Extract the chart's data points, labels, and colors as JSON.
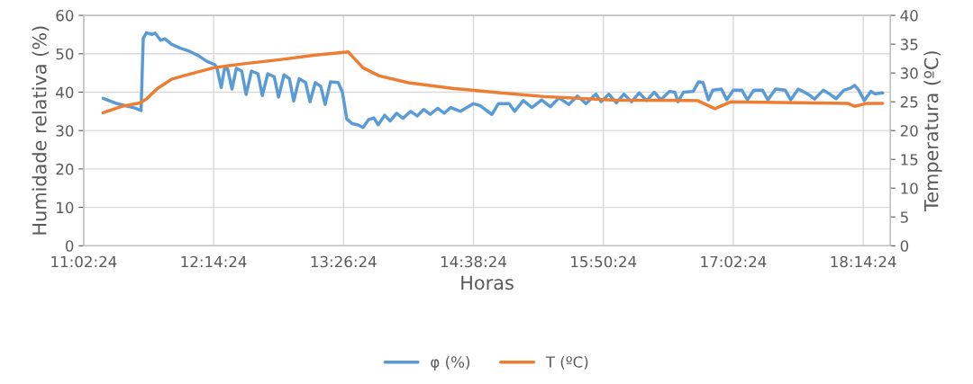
{
  "chart_data": {
    "type": "line",
    "xlabel": "Horas",
    "ylabel": "Humidade relativa (%)",
    "y2label": "Temperatura (ºC)",
    "xlim": [
      11.04,
      18.49
    ],
    "xticks": [
      {
        "value": 11.04,
        "label": "11:02:24"
      },
      {
        "value": 12.24,
        "label": "12:14:24"
      },
      {
        "value": 13.44,
        "label": "13:26:24"
      },
      {
        "value": 14.64,
        "label": "14:38:24"
      },
      {
        "value": 15.84,
        "label": "15:50:24"
      },
      {
        "value": 17.04,
        "label": "17:02:24"
      },
      {
        "value": 18.24,
        "label": "18:14:24"
      }
    ],
    "ylim": [
      0,
      60
    ],
    "yticks": [
      0,
      10,
      20,
      30,
      40,
      50,
      60
    ],
    "y2lim": [
      0,
      40
    ],
    "y2ticks": [
      0,
      5,
      10,
      15,
      20,
      25,
      30,
      35,
      40
    ],
    "grid": true,
    "legend": "bottom",
    "marker": "none",
    "line_style": "solid",
    "series": [
      {
        "name": "φ (%)",
        "color": "#5b9bd5",
        "x": [
          11.22,
          11.35,
          11.52,
          11.57,
          11.59,
          11.62,
          11.67,
          11.7,
          11.75,
          11.79,
          11.85,
          11.93,
          12.02,
          12.1,
          12.18,
          12.25,
          12.27,
          12.31,
          12.34,
          12.37,
          12.41,
          12.45,
          12.5,
          12.54,
          12.59,
          12.65,
          12.69,
          12.74,
          12.8,
          12.84,
          12.89,
          12.94,
          12.98,
          13.03,
          13.09,
          13.13,
          13.18,
          13.23,
          13.27,
          13.32,
          13.39,
          13.43,
          13.47,
          13.52,
          13.57,
          13.62,
          13.67,
          13.72,
          13.76,
          13.82,
          13.87,
          13.93,
          13.99,
          14.06,
          14.12,
          14.18,
          14.24,
          14.31,
          14.37,
          14.43,
          14.52,
          14.64,
          14.7,
          14.81,
          14.87,
          14.97,
          15.02,
          15.1,
          15.18,
          15.27,
          15.35,
          15.43,
          15.52,
          15.6,
          15.68,
          15.77,
          15.82,
          15.89,
          15.96,
          16.03,
          16.1,
          16.17,
          16.24,
          16.31,
          16.37,
          16.45,
          16.5,
          16.53,
          16.58,
          16.67,
          16.72,
          16.76,
          16.81,
          16.85,
          16.93,
          16.98,
          17.04,
          17.12,
          17.17,
          17.23,
          17.31,
          17.36,
          17.43,
          17.52,
          17.57,
          17.64,
          17.73,
          17.79,
          17.87,
          17.93,
          17.99,
          18.06,
          18.12,
          18.16,
          18.2,
          18.25,
          18.31,
          18.35,
          18.42
        ],
        "values": [
          38.4,
          37.0,
          35.8,
          35.2,
          54.0,
          55.5,
          55.0,
          55.4,
          53.5,
          53.9,
          52.5,
          51.5,
          50.6,
          49.5,
          48.0,
          47.2,
          46.5,
          41.2,
          46.0,
          46.0,
          40.8,
          46.2,
          45.5,
          39.4,
          45.5,
          44.8,
          39.1,
          44.8,
          44.0,
          38.7,
          44.5,
          43.5,
          37.7,
          43.5,
          42.5,
          37.5,
          42.5,
          41.5,
          36.8,
          42.7,
          42.5,
          40.0,
          33.0,
          31.8,
          31.5,
          30.8,
          32.8,
          33.3,
          31.5,
          34.0,
          32.5,
          34.5,
          33.2,
          35.0,
          33.8,
          35.5,
          34.2,
          35.8,
          34.5,
          36.0,
          35.0,
          37.0,
          36.5,
          34.2,
          37.0,
          37.0,
          35.0,
          37.8,
          36.0,
          38.0,
          36.2,
          38.5,
          36.8,
          39.0,
          37.0,
          39.5,
          37.5,
          39.5,
          37.2,
          39.5,
          37.5,
          39.8,
          37.8,
          40.0,
          38.0,
          40.2,
          40.0,
          37.5,
          40.0,
          40.2,
          42.7,
          42.5,
          38.0,
          40.5,
          40.8,
          38.0,
          40.5,
          40.5,
          38.0,
          40.5,
          40.5,
          38.0,
          40.8,
          40.5,
          38.0,
          40.8,
          39.5,
          38.2,
          40.5,
          39.5,
          38.3,
          40.5,
          41.0,
          41.8,
          40.5,
          37.8,
          40.2,
          39.6,
          39.8
        ]
      },
      {
        "name": "T (ºC)",
        "color": "#ed7d31",
        "axis": "y2",
        "x": [
          11.22,
          11.39,
          11.56,
          11.62,
          11.72,
          11.85,
          12.02,
          12.24,
          12.52,
          12.85,
          13.18,
          13.46,
          13.48,
          13.62,
          13.77,
          14.04,
          14.46,
          14.87,
          15.29,
          15.93,
          16.71,
          16.87,
          17.02,
          18.1,
          18.16,
          18.27,
          18.42
        ],
        "values": [
          23.1,
          24.2,
          24.8,
          25.5,
          27.3,
          28.9,
          29.8,
          30.9,
          31.6,
          32.3,
          33.1,
          33.6,
          33.7,
          30.9,
          29.5,
          28.3,
          27.3,
          26.6,
          25.9,
          25.3,
          25.2,
          23.8,
          25.0,
          24.7,
          24.2,
          24.7,
          24.7
        ]
      }
    ]
  }
}
